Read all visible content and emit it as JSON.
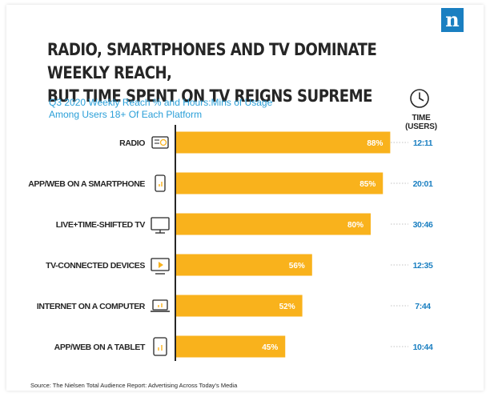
{
  "brand": {
    "logo_letter": "n",
    "accent_color": "#1a7fc1"
  },
  "header": {
    "title_line1": "RADIO, SMARTPHONES AND TV DOMINATE WEEKLY REACH,",
    "title_line2": "BUT TIME SPENT ON TV REIGNS SUPREME",
    "subtitle_line1": "Q3 2020 Weekly Reach % and Hours:Mins of Usage",
    "subtitle_line2": "Among Users 18+ Of Each Platform",
    "time_column_header": "TIME (USERS)"
  },
  "icons": {
    "time_header_icon": "clock-icon"
  },
  "chart_data": {
    "type": "bar",
    "orientation": "horizontal",
    "title": "RADIO, SMARTPHONES AND TV DOMINATE WEEKLY REACH, BUT TIME SPENT ON TV REIGNS SUPREME",
    "subtitle": "Q3 2020 Weekly Reach % and Hours:Mins of Usage Among Users 18+ Of Each Platform",
    "categories": [
      "RADIO",
      "APP/WEB ON A SMARTPHONE",
      "LIVE+TIME-SHIFTED TV",
      "TV-CONNECTED DEVICES",
      "INTERNET ON A COMPUTER",
      "APP/WEB ON A TABLET"
    ],
    "values": [
      88,
      85,
      80,
      56,
      52,
      45
    ],
    "value_labels": [
      "88%",
      "85%",
      "80%",
      "56%",
      "52%",
      "45%"
    ],
    "time_labels": [
      "12:11",
      "20:01",
      "30:46",
      "12:35",
      "7:44",
      "10:44"
    ],
    "category_icons": [
      "radio-icon",
      "smartphone-icon",
      "tv-icon",
      "tv-connected-device-icon",
      "laptop-icon",
      "tablet-icon"
    ],
    "xlim": [
      0,
      100
    ],
    "bar_color": "#f9b21c",
    "time_color": "#1a7fc1",
    "grid": false,
    "legend": "none"
  },
  "footer": {
    "source": "Source: The Nielsen Total Audience Report: Advertising Across Today's Media"
  }
}
